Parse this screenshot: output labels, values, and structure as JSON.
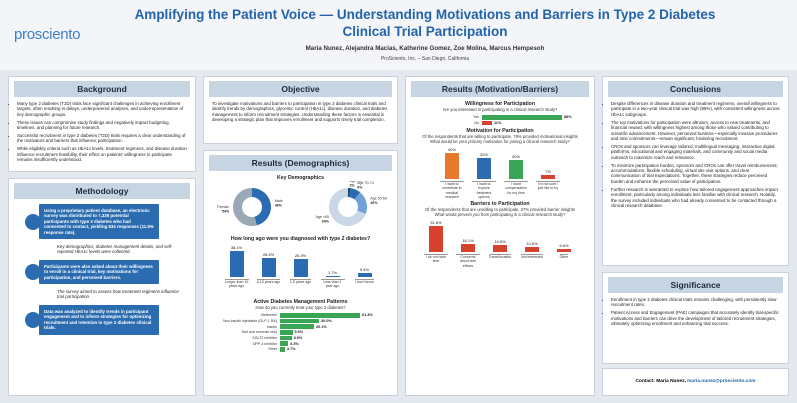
{
  "header": {
    "logo": "prosciento",
    "title": "Amplifying the Patient Voice — Understanding Motivations and Barriers in Type 2 Diabetes Clinical Trial Participation",
    "authors": "Maria Nunez, Alejandra Macias, Katherine Gomez, Zoe Molina, Marcus Hempesoh",
    "affiliation": "ProSciento, Inc. – San Diego, California"
  },
  "background": {
    "heading": "Background",
    "bullets": [
      "Many type 2 diabetes (T2D) trials face significant challenges in achieving enrollment targets, often resulting in delays, underpowered analyses, and underrepresentation of key demographic groups.",
      "These issues can compromise study findings and negatively impact budgeting, timelines, and planning for future research.",
      "Successful recruitment in type 2 diabetes (T2D) trials requires a clear understanding of the motivators and barriers that influence participation.",
      "While eligibility criteria such as HbA1c levels, treatment regimens, and disease duration influence recruitment feasibility, their effect on patients' willingness to participate remains insufficiently understood."
    ]
  },
  "methodology": {
    "heading": "Methodology",
    "steps": [
      "Using a proprietary patient database, an electronic survey was distributed to 7,336 potential participants with type 2 diabetes who had consented to contact, yielding 834 responses (11.5% response rate).",
      "Participants were also asked about their willingness to enroll in a clinical trial, key motivations for participation, and perceived barriers.",
      "Data was analyzed to identify trends in participant engagement and to inform strategies for optimizing recruitment and retention in type 2 diabetes clinical trials."
    ],
    "notes": [
      "Key demographics, diabetes management details, and self-reported HbA1c levels were collected.",
      "The survey aimed to assess how treatment regimens influence trial participation"
    ]
  },
  "objective": {
    "heading": "Objective",
    "text": "To investigate motivations and barriers to participation in type 2 diabetes clinical trials and identify trends by demographics, glycemic control (HbA1c), disease duration, and diabetes management to inform recruitment strategies. Understanding these factors is essential in developing a strategic plan that improves enrollment and supports timely trial completion."
  },
  "demographics": {
    "heading": "Results (Demographics)",
    "subheading": "Key Demographics",
    "gender": {
      "type": "pie",
      "categories": [
        "Male",
        "Female"
      ],
      "values": [
        46,
        54
      ],
      "value_labels": [
        "46%",
        "54%"
      ],
      "colors": [
        "#2b6cb0",
        "#9aa7b4"
      ]
    },
    "age": {
      "type": "pie",
      "categories": [
        "Age 75+",
        "Age 70-74",
        "Age 65-69",
        "Age <65"
      ],
      "values": [
        2,
        9,
        20,
        69
      ],
      "value_labels": [
        "2%",
        "9%",
        "20%",
        "69%"
      ],
      "colors": [
        "#1f3f66",
        "#2b6cb0",
        "#6fa0d6",
        "#c9d7e6"
      ]
    },
    "diagnosis": {
      "type": "bar",
      "orientation": "vertical",
      "title": "How long ago were you diagnosed with type 2 diabetes?",
      "categories": [
        "Longer than 10 years ago",
        "6-10 years ago",
        "1-5 years ago",
        "Less than 1 year ago",
        "I don't know"
      ],
      "values": [
        38.1,
        28.5,
        26.3,
        1.7,
        5.4
      ],
      "value_labels": [
        "38.1%",
        "28.5%",
        "26.3%",
        "1.7%",
        "5.4%"
      ],
      "color": "#2b6cb0"
    },
    "management": {
      "type": "bar",
      "orientation": "horizontal",
      "title": "Active Diabetes Management Patterns",
      "subtitle": "How do you currently treat your type 2 diabetes?",
      "categories": [
        "Metformin",
        "Non-insulin injectable (GLP-1 RA)",
        "Insulin",
        "Diet and exercise only",
        "SGLT2 inhibitor",
        "DPP-4 inhibitor",
        "Other"
      ],
      "values": [
        61.3,
        30.0,
        26.1,
        9.6,
        8.9,
        6.3,
        3.7
      ],
      "value_labels": [
        "61.3%",
        "30.0%",
        "26.1%",
        "9.6%",
        "8.9%",
        "6.3%",
        "3.7%"
      ],
      "color": "#3aa655"
    }
  },
  "motivation": {
    "heading": "Results (Motivation/Barriers)",
    "willingness": {
      "type": "bar",
      "orientation": "horizontal",
      "title": "Willingness for Participation",
      "subtitle": "Are you interested in participating in a clinical research study?",
      "categories": [
        "Yes",
        "No"
      ],
      "values": [
        88,
        11
      ],
      "value_labels": [
        "88%",
        "11%"
      ],
      "colors": [
        "#3aa655",
        "#d9412f"
      ]
    },
    "motivators": {
      "type": "bar",
      "orientation": "vertical",
      "title": "Motivation for Participation",
      "subtitle": "Of the respondents that are willing to participate, 78% provided motivational insights",
      "question": "What would be your primary motivation for joining a clinical research study?",
      "categories": [
        "I want to contribute to medical research",
        "I want to explore treatment options",
        "I want compensation for my time",
        "I'm not sure / just like to try"
      ],
      "values": [
        40,
        32,
        30,
        7
      ],
      "value_labels": [
        "40%",
        "32%",
        "30%",
        "7%"
      ],
      "colors": [
        "#e8782c",
        "#2b6cb0",
        "#3aa655",
        "#d9412f"
      ]
    },
    "barriers": {
      "type": "bar",
      "orientation": "vertical",
      "title": "Barriers to Participation",
      "subtitle": "Of the respondents that are unwilling to participate, 27% provided barrier insights",
      "question": "What would prevent you from participating in a clinical research study?",
      "categories": [
        "I do not have time",
        "Concerns about side effects",
        "Travel/location",
        "Not interested",
        "Other"
      ],
      "values": [
        51.8,
        16.1,
        14.8,
        10.6,
        6.6
      ],
      "value_labels": [
        "51.8%",
        "16.1%",
        "14.8%",
        "10.6%",
        "6.6%"
      ],
      "color": "#d9412f"
    }
  },
  "conclusions": {
    "heading": "Conclusions",
    "bullets": [
      "Despite differences in disease duration and treatment regimens, overall willingness to participate in a two-year clinical trial was high (88%), with consistent willingness across HbA1c subgroups.",
      "The top motivations for participation were altruism, access to new treatments, and financial reward, with willingness highest among those who valued contributing to scientific advancement. However, perceived burdens—especially invasive procedures and time commitments—remain significant, hindering recruitment.",
      "CROs and sponsors can leverage tailored, multilingual messaging, interactive digital platforms, educational and engaging materials, and community and social media outreach to maximize reach and relevance.",
      "To minimize participation burden, sponsors and CROs can offer travel reimbursement, accommodations, flexible scheduling, virtual site visit options, and clear communication of trial expectations. Together, these strategies reduce perceived burden and enhance the perceived value of participation.",
      "Further research is warranted to explore how tailored engagement approaches impact enrollment, particularly among individuals less familiar with clinical research. Notably, the survey included individuals who had already consented to be contacted through a clinical research database."
    ]
  },
  "significance": {
    "heading": "Significance",
    "bullets": [
      "Enrollment in type 2 diabetes clinical trials remains challenging, with persistently slow recruitment rates.",
      "Patient Access and Engagement (PAE) campaigns that accurately identify trial-specific motivations and barriers can drive the development of tailored recruitment strategies, ultimately optimizing enrollment and enhancing trial success."
    ]
  },
  "contact": {
    "label": "Contact: Maria Nunez,",
    "email": "maria.nunez@prosciento.com"
  }
}
